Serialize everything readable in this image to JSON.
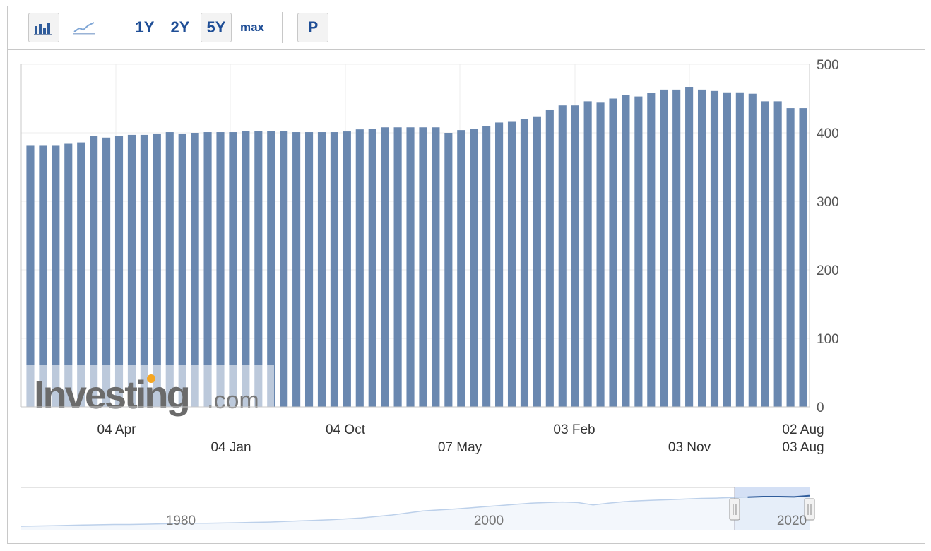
{
  "toolbar": {
    "bar_chart_icon": "bar-chart-icon",
    "line_chart_icon": "line-chart-icon",
    "ranges": [
      "1Y",
      "2Y",
      "5Y",
      "max"
    ],
    "active_range": "5Y",
    "p_label": "P"
  },
  "watermark": {
    "brand": "Investing",
    "suffix": ".com"
  },
  "colors": {
    "bar": "#6a88b0",
    "navigator_line": "#2f5c9b",
    "navigator_fill": "#d4e0f5",
    "accent_dot": "#f5a623"
  },
  "chart_data": {
    "type": "bar",
    "title": "",
    "xlabel": "",
    "ylabel": "",
    "ylim": [
      0,
      500
    ],
    "yticks": [
      0,
      100,
      200,
      300,
      400,
      500
    ],
    "xtick_labels_row1": [
      "04 Apr",
      "04 Oct",
      "03 Feb",
      "02 Aug"
    ],
    "xtick_labels_row2": [
      "04 Jan",
      "07 May",
      "03 Nov",
      "03 Aug"
    ],
    "values": [
      382,
      382,
      382,
      384,
      386,
      395,
      393,
      395,
      397,
      397,
      399,
      401,
      399,
      400,
      401,
      401,
      401,
      403,
      403,
      403,
      403,
      401,
      401,
      401,
      401,
      402,
      405,
      406,
      408,
      408,
      408,
      408,
      408,
      400,
      404,
      406,
      410,
      415,
      417,
      420,
      424,
      433,
      440,
      440,
      446,
      444,
      450,
      455,
      453,
      458,
      463,
      463,
      467,
      463,
      461,
      459,
      459,
      457,
      446,
      446,
      436,
      436
    ],
    "grid": true,
    "legend": "none"
  },
  "navigator": {
    "year_labels": [
      "1980",
      "2000",
      "2020"
    ],
    "series": [
      0.0,
      0.01,
      0.02,
      0.03,
      0.04,
      0.05,
      0.06,
      0.06,
      0.07,
      0.08,
      0.09,
      0.1,
      0.1,
      0.11,
      0.12,
      0.13,
      0.14,
      0.16,
      0.18,
      0.2,
      0.22,
      0.25,
      0.28,
      0.33,
      0.38,
      0.45,
      0.52,
      0.55,
      0.58,
      0.62,
      0.66,
      0.7,
      0.74,
      0.78,
      0.8,
      0.82,
      0.8,
      0.72,
      0.78,
      0.83,
      0.86,
      0.88,
      0.9,
      0.92,
      0.94,
      0.95,
      0.97,
      0.98,
      1.0,
      1.0,
      0.99,
      1.03
    ],
    "selected_fraction": 0.095
  }
}
